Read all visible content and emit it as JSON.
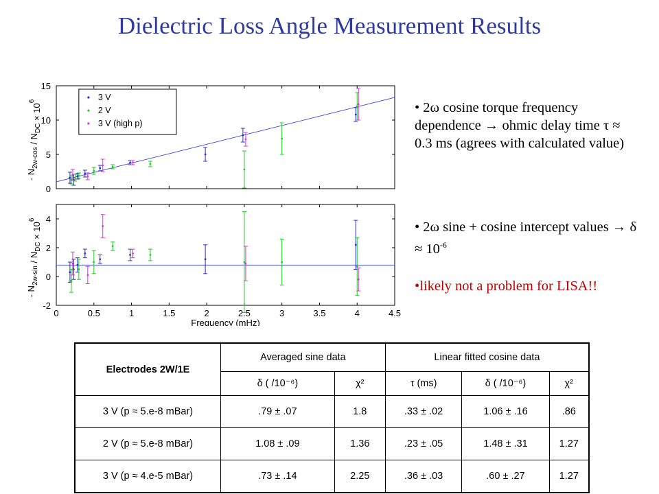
{
  "title": "Dielectric Loss Angle Measurement Results",
  "bullets": {
    "b1": "• 2ω cosine torque frequency dependence → ohmic delay time τ ≈ 0.3 ms (agrees with calculated value)",
    "b2_main": "• 2ω  sine + cosine intercept values → δ ≈ 10",
    "b2_exp": "-6",
    "b3": "•likely not a problem for LISA!!"
  },
  "colors": {
    "title": "#2e3a9e",
    "series_3V": "#2b2bd6",
    "series_2V": "#22cc22",
    "series_3V_high_p": "#e030e0",
    "fit": "#4a56e0",
    "red_text": "#c00000"
  },
  "table": {
    "row_header": "Electrodes  2W/1E",
    "group_sine": "Averaged sine data",
    "group_cos": "Linear fitted cosine data",
    "subheaders": [
      "δ ( /10⁻⁶)",
      "χ²",
      "τ (ms)",
      "δ ( /10⁻⁶)",
      "χ²"
    ],
    "rows": [
      [
        "3 V (p ≈ 5.e-8 mBar)",
        ".79 ± .07",
        "1.8",
        ".33 ± .02",
        "1.06 ± .16",
        ".86"
      ],
      [
        "2 V (p ≈ 5.e-8 mBar)",
        "1.08 ± .09",
        "1.36",
        ".23 ± .05",
        "1.48 ± .31",
        "1.27"
      ],
      [
        "3 V (p ≈ 4.e-5 mBar)",
        ".73 ± .14",
        "2.25",
        ".36 ± .03",
        ".60 ± .27",
        "1.27"
      ]
    ]
  },
  "chart_data": [
    {
      "type": "scatter",
      "ylabel": "- N",
      "ylabel_sub": "2w-cos",
      "ylabel_mid": " / N",
      "ylabel_sub2": "DC",
      "ylabel_tail": " × 10",
      "ylabel_sup": "6",
      "xlim": [
        0,
        4.5
      ],
      "ylim": [
        0,
        15
      ],
      "xticks": [
        0,
        0.5,
        1,
        1.5,
        2,
        2.5,
        3,
        3.5,
        4,
        4.5
      ],
      "yticks": [
        0,
        5,
        10,
        15
      ],
      "legend_position": "top-left",
      "fit_line": {
        "x": [
          0,
          4.5
        ],
        "y": [
          1.0,
          13.3
        ]
      },
      "series": [
        {
          "name": "3 V",
          "color_key": "series_3V",
          "points": [
            {
              "x": 0.2,
              "y": 1.6,
              "err": 0.8
            },
            {
              "x": 0.25,
              "y": 1.3,
              "err": 0.8
            },
            {
              "x": 0.3,
              "y": 1.8,
              "err": 0.4
            },
            {
              "x": 0.4,
              "y": 2.2,
              "err": 0.5
            },
            {
              "x": 0.6,
              "y": 3.0,
              "err": 0.4
            },
            {
              "x": 1.0,
              "y": 3.8,
              "err": 0.3
            },
            {
              "x": 2.0,
              "y": 5.0,
              "err": 1.0
            },
            {
              "x": 2.5,
              "y": 7.8,
              "err": 1.0
            },
            {
              "x": 4.0,
              "y": 10.8,
              "err": 1.0
            }
          ]
        },
        {
          "name": "2 V",
          "color_key": "series_2V",
          "points": [
            {
              "x": 0.2,
              "y": 1.3,
              "err": 0.6
            },
            {
              "x": 0.25,
              "y": 1.6,
              "err": 0.5
            },
            {
              "x": 0.3,
              "y": 1.9,
              "err": 0.4
            },
            {
              "x": 0.5,
              "y": 2.6,
              "err": 0.5
            },
            {
              "x": 0.75,
              "y": 3.2,
              "err": 0.3
            },
            {
              "x": 1.25,
              "y": 3.6,
              "err": 0.4
            },
            {
              "x": 2.5,
              "y": 2.8,
              "err": 2.7
            },
            {
              "x": 3.0,
              "y": 7.3,
              "err": 2.3
            },
            {
              "x": 4.0,
              "y": 12.0,
              "err": 2.0
            }
          ]
        },
        {
          "name": "3 V (high p)",
          "color_key": "series_3V_high_p",
          "points": [
            {
              "x": 0.2,
              "y": 2.0,
              "err": 0.8
            },
            {
              "x": 0.4,
              "y": 1.8,
              "err": 0.5
            },
            {
              "x": 0.6,
              "y": 3.4,
              "err": 0.9
            },
            {
              "x": 1.0,
              "y": 3.8,
              "err": 0.3
            },
            {
              "x": 2.5,
              "y": 7.2,
              "err": 1.0
            },
            {
              "x": 4.0,
              "y": 12.3,
              "err": 2.3
            }
          ]
        }
      ]
    },
    {
      "type": "scatter",
      "xlabel": "Frequency (mHz)",
      "ylabel": "- N",
      "ylabel_sub": "2w-sin",
      "ylabel_mid": " / N",
      "ylabel_sub2": "DC",
      "ylabel_tail": " × 10",
      "ylabel_sup": "6",
      "xlim": [
        0,
        4.5
      ],
      "ylim": [
        -2,
        5
      ],
      "xticks": [
        0,
        0.5,
        1,
        1.5,
        2,
        2.5,
        3,
        3.5,
        4,
        4.5
      ],
      "yticks": [
        -2,
        0,
        2,
        4
      ],
      "fit_line": {
        "x": [
          0,
          4.5
        ],
        "y": [
          0.79,
          0.79
        ]
      },
      "series": [
        {
          "name": "3 V",
          "color_key": "series_3V",
          "points": [
            {
              "x": 0.2,
              "y": 0.3,
              "err": 0.7
            },
            {
              "x": 0.25,
              "y": 0.5,
              "err": 0.7
            },
            {
              "x": 0.3,
              "y": 0.8,
              "err": 0.5
            },
            {
              "x": 0.4,
              "y": 1.6,
              "err": 0.3
            },
            {
              "x": 0.6,
              "y": 1.2,
              "err": 0.3
            },
            {
              "x": 1.0,
              "y": 1.5,
              "err": 0.4
            },
            {
              "x": 2.0,
              "y": 1.2,
              "err": 1.0
            },
            {
              "x": 4.0,
              "y": 2.2,
              "err": 1.7
            }
          ]
        },
        {
          "name": "2 V",
          "color_key": "series_2V",
          "points": [
            {
              "x": 0.2,
              "y": -0.3,
              "err": 0.8
            },
            {
              "x": 0.3,
              "y": 0.5,
              "err": 0.7
            },
            {
              "x": 0.5,
              "y": 1.0,
              "err": 0.8
            },
            {
              "x": 0.75,
              "y": 2.1,
              "err": 0.3
            },
            {
              "x": 1.25,
              "y": 1.5,
              "err": 0.4
            },
            {
              "x": 2.5,
              "y": 1.0,
              "err": 3.5
            },
            {
              "x": 3.0,
              "y": 1.0,
              "err": 1.6
            },
            {
              "x": 4.0,
              "y": 0.7,
              "err": 2.0
            }
          ]
        },
        {
          "name": "3 V (high p)",
          "color_key": "series_3V_high_p",
          "points": [
            {
              "x": 0.2,
              "y": 0.9,
              "err": 0.8
            },
            {
              "x": 0.4,
              "y": 0.1,
              "err": 0.6
            },
            {
              "x": 0.6,
              "y": 3.5,
              "err": 0.8
            },
            {
              "x": 1.0,
              "y": 1.6,
              "err": 0.3
            },
            {
              "x": 2.5,
              "y": 0.9,
              "err": 1.2
            },
            {
              "x": 4.0,
              "y": -0.2,
              "err": 0.8
            }
          ]
        }
      ]
    }
  ]
}
